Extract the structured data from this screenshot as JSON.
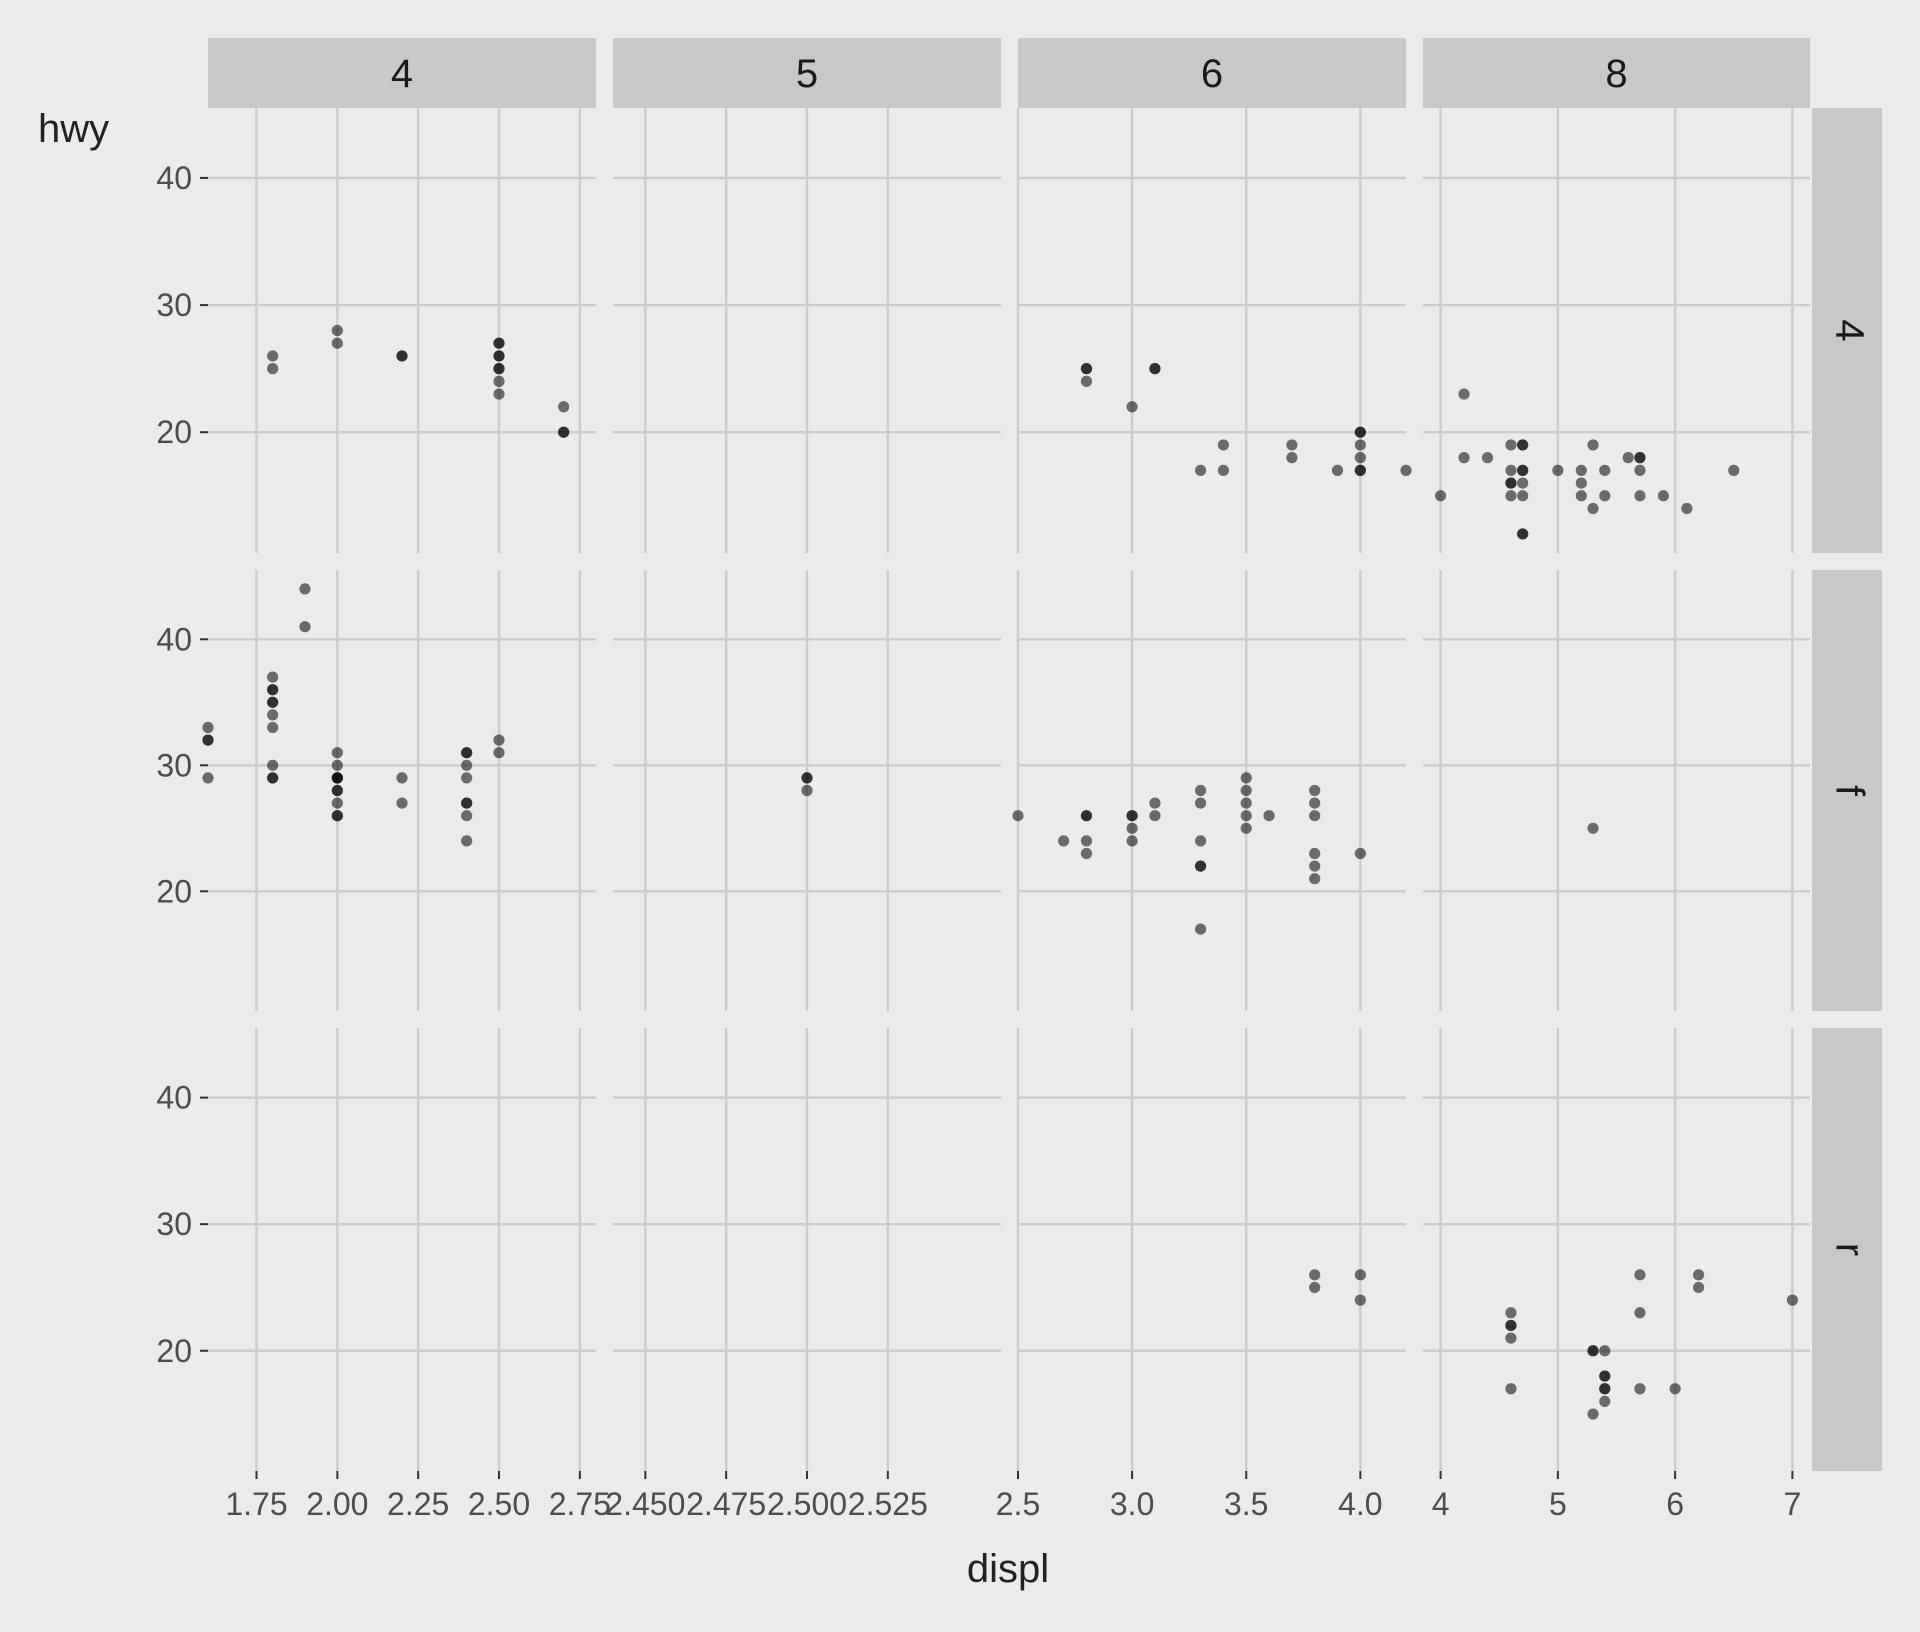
{
  "chart_data": {
    "type": "scatter",
    "facet": "grid",
    "xlabel": "displ",
    "ylabel": "hwy",
    "col_strips": [
      "4",
      "5",
      "6",
      "8"
    ],
    "row_strips": [
      "4",
      "f",
      "r"
    ],
    "y_ticks": [
      20,
      30,
      40
    ],
    "y_tick_labels": [
      "20",
      "30",
      "40"
    ],
    "ylim": [
      10.5,
      45.5
    ],
    "grid": true,
    "point_color": "#000000",
    "point_alpha": 0.55,
    "panel_bg": "#ebebeb",
    "grid_color": "#cccccc",
    "strip_bg": "#c8c8c8",
    "columns": [
      {
        "xlim": [
          1.6,
          2.8
        ],
        "x_ticks": [
          1.75,
          2.0,
          2.25,
          2.5,
          2.75
        ],
        "x_tick_labels": [
          "1.75",
          "2.00",
          "2.25",
          "2.50",
          "2.75"
        ]
      },
      {
        "xlim": [
          2.44,
          2.56
        ],
        "x_ticks": [
          2.45,
          2.475,
          2.5,
          2.525
        ],
        "x_tick_labels": [
          "2.450",
          "2.475",
          "2.500",
          "2.525"
        ]
      },
      {
        "xlim": [
          2.5,
          4.2
        ],
        "x_ticks": [
          2.5,
          3.0,
          3.5,
          4.0
        ],
        "x_tick_labels": [
          "2.5",
          "3.0",
          "3.5",
          "4.0"
        ]
      },
      {
        "xlim": [
          3.85,
          7.15
        ],
        "x_ticks": [
          4,
          5,
          6,
          7
        ],
        "x_tick_labels": [
          "4",
          "5",
          "6",
          "7"
        ]
      }
    ],
    "panels": [
      {
        "row": 0,
        "col": 0,
        "points": [
          [
            1.8,
            26
          ],
          [
            1.8,
            25
          ],
          [
            2.0,
            28
          ],
          [
            2.0,
            27
          ],
          [
            2.2,
            26
          ],
          [
            2.2,
            26
          ],
          [
            2.5,
            27
          ],
          [
            2.5,
            27
          ],
          [
            2.5,
            26
          ],
          [
            2.5,
            26
          ],
          [
            2.5,
            25
          ],
          [
            2.5,
            25
          ],
          [
            2.5,
            24
          ],
          [
            2.5,
            23
          ],
          [
            2.7,
            22
          ],
          [
            2.7,
            20
          ],
          [
            2.7,
            20
          ]
        ]
      },
      {
        "row": 0,
        "col": 2,
        "points": [
          [
            2.8,
            25
          ],
          [
            2.8,
            25
          ],
          [
            2.8,
            24
          ],
          [
            3.1,
            25
          ],
          [
            3.1,
            25
          ],
          [
            3.0,
            22
          ],
          [
            3.3,
            17
          ],
          [
            3.4,
            19
          ],
          [
            3.4,
            17
          ],
          [
            3.7,
            19
          ],
          [
            3.7,
            18
          ],
          [
            3.9,
            17
          ],
          [
            4.0,
            20
          ],
          [
            4.0,
            20
          ],
          [
            4.0,
            19
          ],
          [
            4.0,
            18
          ],
          [
            4.0,
            17
          ],
          [
            4.0,
            17
          ],
          [
            4.2,
            17
          ]
        ]
      },
      {
        "row": 0,
        "col": 3,
        "points": [
          [
            4.0,
            15
          ],
          [
            4.2,
            23
          ],
          [
            4.2,
            18
          ],
          [
            4.4,
            18
          ],
          [
            4.6,
            19
          ],
          [
            4.6,
            17
          ],
          [
            4.6,
            16
          ],
          [
            4.6,
            16
          ],
          [
            4.6,
            15
          ],
          [
            4.7,
            19
          ],
          [
            4.7,
            19
          ],
          [
            4.7,
            17
          ],
          [
            4.7,
            17
          ],
          [
            4.7,
            16
          ],
          [
            4.7,
            15
          ],
          [
            4.7,
            12
          ],
          [
            4.7,
            12
          ],
          [
            5.0,
            17
          ],
          [
            5.2,
            17
          ],
          [
            5.2,
            16
          ],
          [
            5.2,
            15
          ],
          [
            5.3,
            19
          ],
          [
            5.3,
            14
          ],
          [
            5.4,
            17
          ],
          [
            5.4,
            15
          ],
          [
            5.6,
            18
          ],
          [
            5.7,
            18
          ],
          [
            5.7,
            18
          ],
          [
            5.7,
            17
          ],
          [
            5.7,
            15
          ],
          [
            5.9,
            15
          ],
          [
            6.1,
            14
          ],
          [
            6.5,
            17
          ]
        ]
      },
      {
        "row": 1,
        "col": 0,
        "points": [
          [
            1.6,
            33
          ],
          [
            1.6,
            32
          ],
          [
            1.6,
            32
          ],
          [
            1.6,
            29
          ],
          [
            1.8,
            37
          ],
          [
            1.8,
            36
          ],
          [
            1.8,
            36
          ],
          [
            1.8,
            35
          ],
          [
            1.8,
            35
          ],
          [
            1.8,
            34
          ],
          [
            1.8,
            33
          ],
          [
            1.8,
            30
          ],
          [
            1.8,
            29
          ],
          [
            1.8,
            29
          ],
          [
            1.9,
            44
          ],
          [
            1.9,
            41
          ],
          [
            2.0,
            31
          ],
          [
            2.0,
            30
          ],
          [
            2.0,
            29
          ],
          [
            2.0,
            29
          ],
          [
            2.0,
            29
          ],
          [
            2.0,
            28
          ],
          [
            2.0,
            28
          ],
          [
            2.0,
            27
          ],
          [
            2.0,
            26
          ],
          [
            2.0,
            26
          ],
          [
            2.2,
            29
          ],
          [
            2.2,
            27
          ],
          [
            2.4,
            31
          ],
          [
            2.4,
            31
          ],
          [
            2.4,
            30
          ],
          [
            2.4,
            29
          ],
          [
            2.4,
            27
          ],
          [
            2.4,
            27
          ],
          [
            2.4,
            26
          ],
          [
            2.4,
            24
          ],
          [
            2.5,
            32
          ],
          [
            2.5,
            31
          ]
        ]
      },
      {
        "row": 1,
        "col": 1,
        "points": [
          [
            2.5,
            29
          ],
          [
            2.5,
            29
          ],
          [
            2.5,
            28
          ]
        ]
      },
      {
        "row": 1,
        "col": 2,
        "points": [
          [
            2.5,
            26
          ],
          [
            2.7,
            24
          ],
          [
            2.8,
            26
          ],
          [
            2.8,
            26
          ],
          [
            2.8,
            24
          ],
          [
            2.8,
            23
          ],
          [
            3.0,
            26
          ],
          [
            3.0,
            26
          ],
          [
            3.0,
            25
          ],
          [
            3.0,
            24
          ],
          [
            3.1,
            27
          ],
          [
            3.1,
            26
          ],
          [
            3.3,
            28
          ],
          [
            3.3,
            27
          ],
          [
            3.3,
            24
          ],
          [
            3.3,
            22
          ],
          [
            3.3,
            22
          ],
          [
            3.3,
            17
          ],
          [
            3.5,
            29
          ],
          [
            3.5,
            28
          ],
          [
            3.5,
            27
          ],
          [
            3.5,
            26
          ],
          [
            3.5,
            25
          ],
          [
            3.6,
            26
          ],
          [
            3.8,
            28
          ],
          [
            3.8,
            27
          ],
          [
            3.8,
            26
          ],
          [
            3.8,
            23
          ],
          [
            3.8,
            22
          ],
          [
            3.8,
            21
          ],
          [
            4.0,
            23
          ]
        ]
      },
      {
        "row": 1,
        "col": 3,
        "points": [
          [
            5.3,
            25
          ]
        ]
      },
      {
        "row": 2,
        "col": 2,
        "points": [
          [
            3.8,
            26
          ],
          [
            3.8,
            25
          ],
          [
            4.0,
            26
          ],
          [
            4.0,
            24
          ]
        ]
      },
      {
        "row": 2,
        "col": 3,
        "points": [
          [
            4.6,
            23
          ],
          [
            4.6,
            22
          ],
          [
            4.6,
            22
          ],
          [
            4.6,
            21
          ],
          [
            4.6,
            17
          ],
          [
            5.3,
            20
          ],
          [
            5.3,
            20
          ],
          [
            5.3,
            15
          ],
          [
            5.4,
            20
          ],
          [
            5.4,
            18
          ],
          [
            5.4,
            18
          ],
          [
            5.4,
            17
          ],
          [
            5.4,
            17
          ],
          [
            5.4,
            16
          ],
          [
            5.7,
            26
          ],
          [
            5.7,
            23
          ],
          [
            5.7,
            17
          ],
          [
            6.0,
            17
          ],
          [
            6.2,
            26
          ],
          [
            6.2,
            25
          ],
          [
            7.0,
            24
          ]
        ]
      }
    ]
  }
}
